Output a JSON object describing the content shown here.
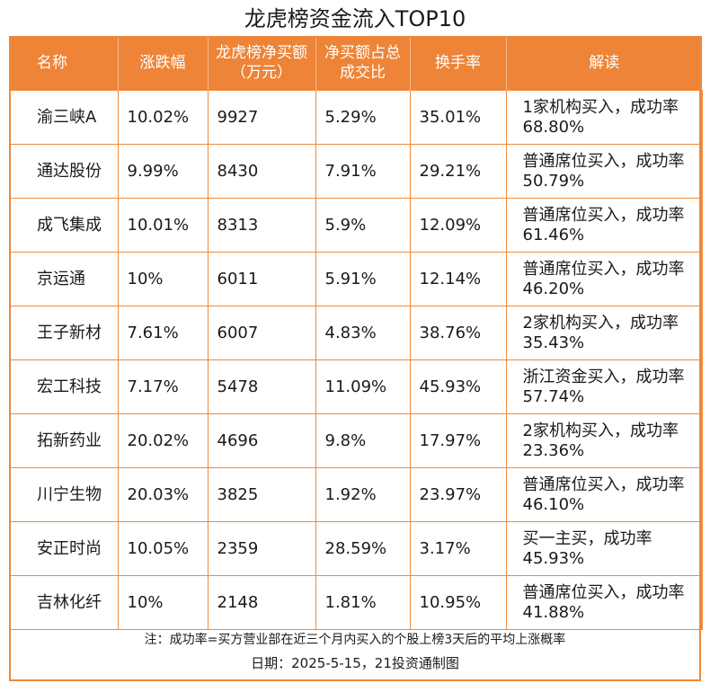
{
  "title": "龙虎榜资金流入TOP10",
  "headers": [
    "名称",
    "涨跌幅",
    "龙虎榜净买额（万元）",
    "净买额占总成交比",
    "换手率",
    "解读"
  ],
  "rows": [
    [
      "渝三峡A",
      "10.02%",
      "9927",
      "5.29%",
      "35.01%",
      "1家机构买入，成功率68.80%"
    ],
    [
      "通达股份",
      "9.99%",
      "8430",
      "7.91%",
      "29.21%",
      "普通席位买入，成功率50.79%"
    ],
    [
      "成飞集成",
      "10.01%",
      "8313",
      "5.9%",
      "12.09%",
      "普通席位买入，成功率61.46%"
    ],
    [
      "京运通",
      "10%",
      "6011",
      "5.91%",
      "12.14%",
      "普通席位买入，成功率46.20%"
    ],
    [
      "王子新材",
      "7.61%",
      "6007",
      "4.83%",
      "38.76%",
      "2家机构买入，成功率35.43%"
    ],
    [
      "宏工科技",
      "7.17%",
      "5478",
      "11.09%",
      "45.93%",
      "浙江资金买入，成功率57.74%"
    ],
    [
      "拓新药业",
      "20.02%",
      "4696",
      "9.8%",
      "17.97%",
      "2家机构买入，成功率23.36%"
    ],
    [
      "川宁生物",
      "20.03%",
      "3825",
      "1.92%",
      "23.97%",
      "普通席位买入，成功率46.10%"
    ],
    [
      "安正时尚",
      "10.05%",
      "2359",
      "28.59%",
      "3.17%",
      "买一主买，成功率45.93%"
    ],
    [
      "吉林化纤",
      "10%",
      "2148",
      "1.81%",
      "10.95%",
      "普通席位买入，成功率41.88%"
    ]
  ],
  "note": "注：成功率=买方营业部在近三个月内买入的个股上榜3天后的平均上涨概率",
  "date_line": "日期：2025-5-15，21投资通制图",
  "colors": {
    "header_bg": "#ee8437",
    "border": "#f0893a"
  }
}
